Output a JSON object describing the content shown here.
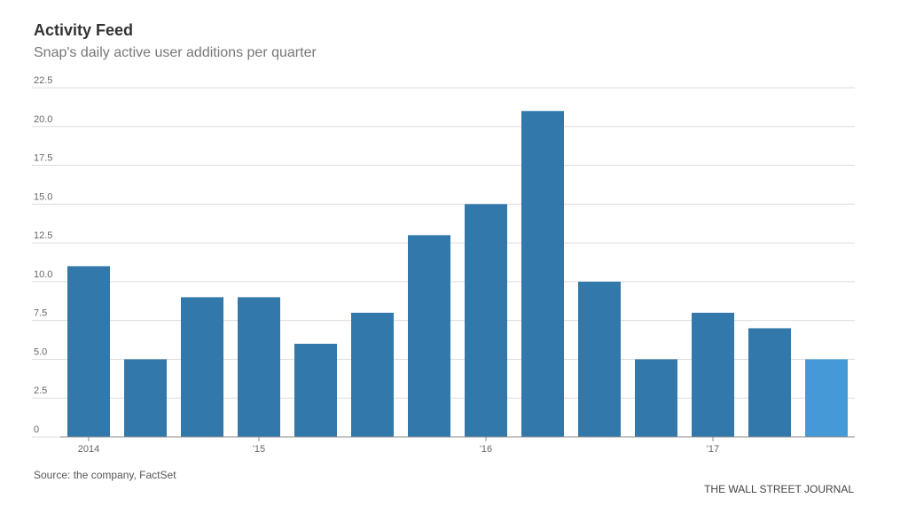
{
  "chart_data": {
    "type": "bar",
    "title": "Activity Feed",
    "subtitle": "Snap's daily active user additions per quarter",
    "source": "Source: the company, FactSet",
    "credit": "THE WALL STREET JOURNAL",
    "categories": [
      "2014",
      null,
      null,
      "'15",
      null,
      null,
      null,
      "'16",
      null,
      null,
      null,
      "'17",
      null,
      null
    ],
    "values": [
      11,
      5,
      9,
      9,
      6,
      8,
      13,
      15,
      21,
      10,
      5,
      8,
      7,
      5
    ],
    "colors": [
      "#3278ab",
      "#3278ab",
      "#3278ab",
      "#3278ab",
      "#3278ab",
      "#3278ab",
      "#3278ab",
      "#3278ab",
      "#3278ab",
      "#3278ab",
      "#3278ab",
      "#3278ab",
      "#3278ab",
      "#4499d6"
    ],
    "ylim": [
      0,
      22.5
    ],
    "yticks": [
      0,
      2.5,
      {
        "value": 5,
        "label": "5.0"
      },
      7.5,
      {
        "value": 10,
        "label": "10.0"
      },
      12.5,
      {
        "value": 15,
        "label": "15.0"
      },
      17.5,
      {
        "value": 20,
        "label": "20.0"
      },
      22.5
    ],
    "grid": true
  }
}
